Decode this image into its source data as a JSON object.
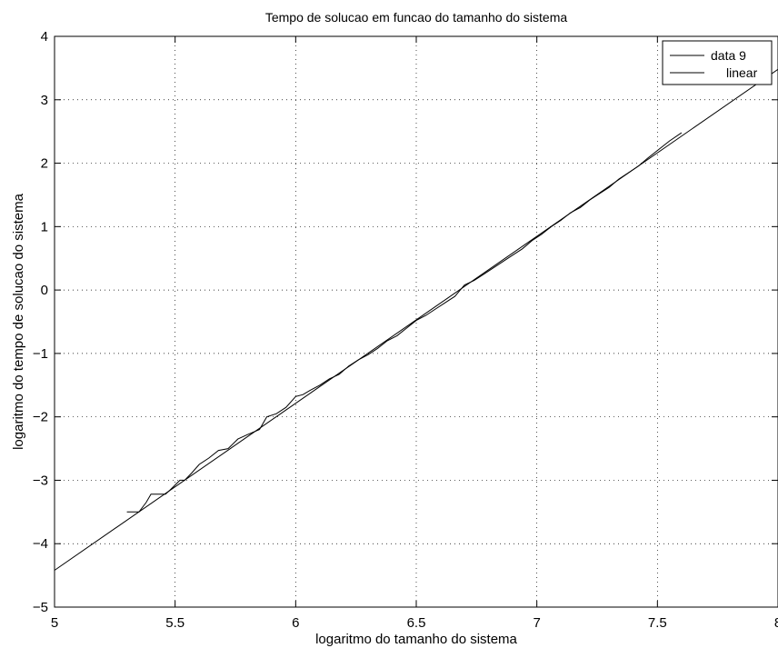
{
  "chart_data": {
    "type": "line",
    "title": "Tempo de solucao em funcao do tamanho do sistema",
    "xlabel": "logaritmo do tamanho do sistema",
    "ylabel": "logaritmo do tempo de solucao do sistema",
    "xlim": [
      5,
      8
    ],
    "ylim": [
      -5,
      4
    ],
    "xticks": [
      5,
      5.5,
      6,
      6.5,
      7,
      7.5,
      8
    ],
    "xtick_labels": [
      "5",
      "5.5",
      "6",
      "6.5",
      "7",
      "7.5",
      "8"
    ],
    "yticks": [
      -5,
      -4,
      -3,
      -2,
      -1,
      0,
      1,
      2,
      3,
      4
    ],
    "ytick_labels": [
      "−5",
      "−4",
      "−3",
      "−2",
      "−1",
      "0",
      "1",
      "2",
      "3",
      "4"
    ],
    "grid": true,
    "legend_position": "top-right",
    "series": [
      {
        "name": "data 9",
        "color": "#000000",
        "x": [
          5.3,
          5.35,
          5.38,
          5.4,
          5.43,
          5.46,
          5.48,
          5.52,
          5.54,
          5.57,
          5.6,
          5.64,
          5.68,
          5.72,
          5.76,
          5.8,
          5.85,
          5.88,
          5.92,
          5.96,
          6.0,
          6.03,
          6.06,
          6.1,
          6.14,
          6.18,
          6.22,
          6.26,
          6.3,
          6.34,
          6.38,
          6.42,
          6.46,
          6.5,
          6.54,
          6.58,
          6.62,
          6.66,
          6.7,
          6.74,
          6.78,
          6.82,
          6.86,
          6.9,
          6.94,
          6.98,
          7.02,
          7.06,
          7.1,
          7.14,
          7.18,
          7.22,
          7.26,
          7.3,
          7.34,
          7.38,
          7.42,
          7.46,
          7.5,
          7.55,
          7.6
        ],
        "y": [
          -3.5,
          -3.5,
          -3.35,
          -3.22,
          -3.22,
          -3.22,
          -3.15,
          -3.0,
          -3.0,
          -2.88,
          -2.75,
          -2.65,
          -2.53,
          -2.5,
          -2.35,
          -2.28,
          -2.2,
          -2.0,
          -1.95,
          -1.85,
          -1.68,
          -1.65,
          -1.58,
          -1.5,
          -1.4,
          -1.33,
          -1.2,
          -1.1,
          -1.02,
          -0.92,
          -0.8,
          -0.72,
          -0.6,
          -0.48,
          -0.4,
          -0.3,
          -0.2,
          -0.1,
          0.08,
          0.15,
          0.25,
          0.35,
          0.45,
          0.55,
          0.65,
          0.78,
          0.88,
          1.0,
          1.1,
          1.22,
          1.3,
          1.42,
          1.52,
          1.62,
          1.75,
          1.85,
          1.95,
          2.08,
          2.2,
          2.35,
          2.48
        ]
      },
      {
        "name": "linear",
        "color": "#000000",
        "x": [
          5,
          8
        ],
        "y": [
          -4.42,
          3.48
        ]
      }
    ]
  }
}
